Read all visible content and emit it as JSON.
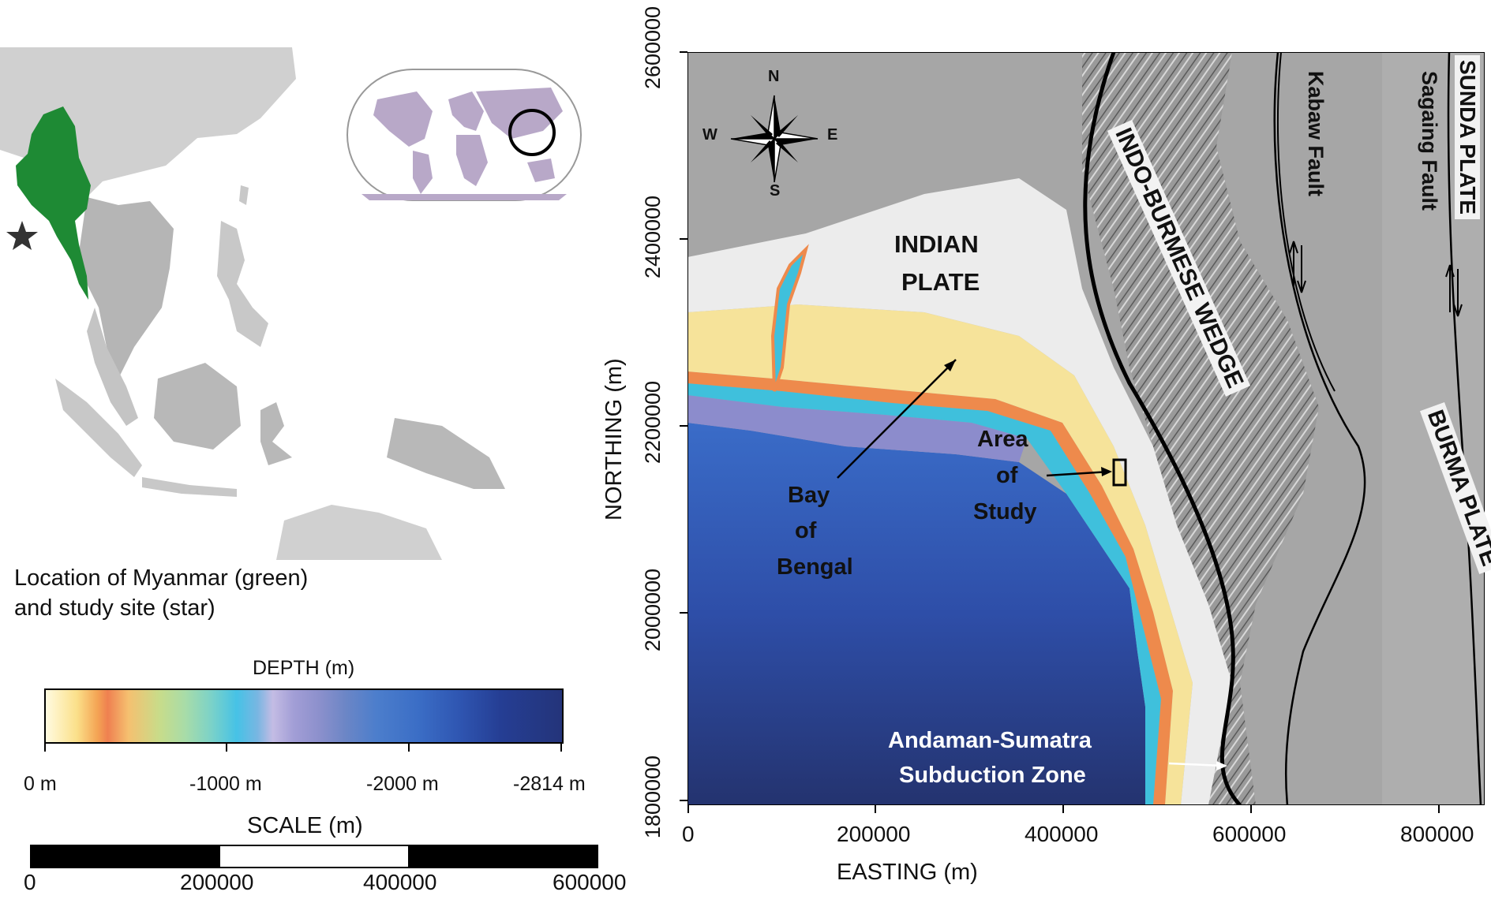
{
  "inset": {
    "caption_line1": "Location of Myanmar (green)",
    "caption_line2": "and study site (star)",
    "myanmar_color": "#1e8a34",
    "land_color": "#d2d2d2",
    "neighbor_color": "#b8b8b8"
  },
  "depth_legend": {
    "title": "DEPTH (m)",
    "ticks": [
      "0 m",
      "-1000 m",
      "-2000 m",
      "-2814 m"
    ]
  },
  "scale": {
    "title": "SCALE (m)",
    "ticks": [
      "0",
      "200000",
      "400000",
      "600000"
    ]
  },
  "map": {
    "y_axis_title": "NORTHING (m)",
    "x_axis_title": "EASTING (m)",
    "y_ticks": [
      "1800000",
      "2000000",
      "2200000",
      "2400000",
      "2600000"
    ],
    "x_ticks": [
      "0",
      "200000",
      "400000",
      "600000",
      "800000"
    ],
    "compass": {
      "n": "N",
      "s": "S",
      "e": "E",
      "w": "W"
    },
    "labels": {
      "indian_plate_1": "INDIAN",
      "indian_plate_2": "PLATE",
      "bay_1": "Bay",
      "bay_2": "of",
      "bay_3": "Bengal",
      "area_1": "Area",
      "area_2": "of",
      "area_3": "Study",
      "andaman_1": "Andaman-Sumatra",
      "andaman_2": "Subduction Zone",
      "indo_burmese": "INDO-BURMESE WEDGE",
      "kabaw": "Kabaw Fault",
      "sagaing": "Sagaing Fault",
      "sunda": "SUNDA PLATE",
      "burma": "BURMA PLATE"
    }
  }
}
